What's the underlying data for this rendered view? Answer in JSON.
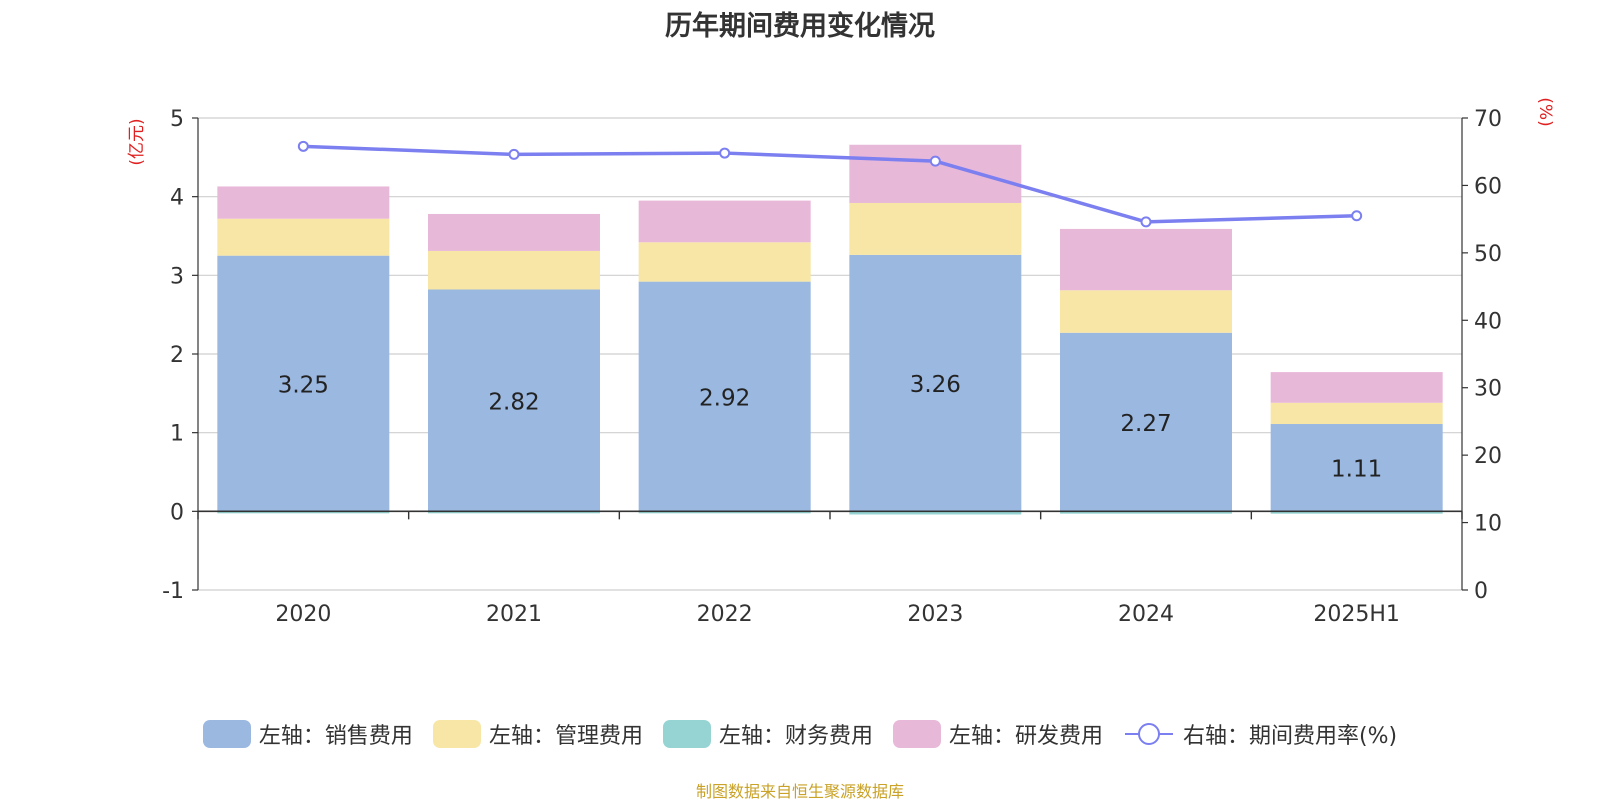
{
  "title": "历年期间费用变化情况",
  "source": "制图数据来自恒生聚源数据库",
  "chart_data": {
    "type": "bar",
    "stacked": true,
    "categories": [
      "2020",
      "2021",
      "2022",
      "2023",
      "2024",
      "2025H1"
    ],
    "left_axis": {
      "unit": "(亿元)",
      "min": -1,
      "max": 5,
      "ticks": [
        -1,
        0,
        1,
        2,
        3,
        4,
        5
      ]
    },
    "right_axis": {
      "unit": "(%)",
      "min": 0,
      "max": 70,
      "ticks": [
        0,
        10,
        20,
        30,
        40,
        50,
        60,
        70
      ]
    },
    "series": [
      {
        "name": "左轴：销售费用",
        "axis": "left",
        "color": "#9bb8e1",
        "values": [
          3.25,
          2.82,
          2.92,
          3.26,
          2.27,
          1.11
        ],
        "show_labels": true
      },
      {
        "name": "左轴：管理费用",
        "axis": "left",
        "color": "#f8e6a6",
        "values": [
          0.47,
          0.49,
          0.5,
          0.66,
          0.54,
          0.27
        ]
      },
      {
        "name": "左轴：财务费用",
        "axis": "left",
        "color": "#96d4d4",
        "values": [
          -0.01,
          -0.01,
          -0.01,
          -0.04,
          -0.03,
          -0.03
        ]
      },
      {
        "name": "左轴：研发费用",
        "axis": "left",
        "color": "#e8b8d9",
        "values": [
          0.41,
          0.47,
          0.53,
          0.74,
          0.78,
          0.39
        ]
      },
      {
        "name": "右轴：期间费用率(%)",
        "axis": "right",
        "type": "line",
        "color": "#7b7ff0",
        "values": [
          65.8,
          64.6,
          64.8,
          63.6,
          54.6,
          55.5
        ]
      }
    ],
    "grid": true,
    "legend_position": "bottom"
  }
}
